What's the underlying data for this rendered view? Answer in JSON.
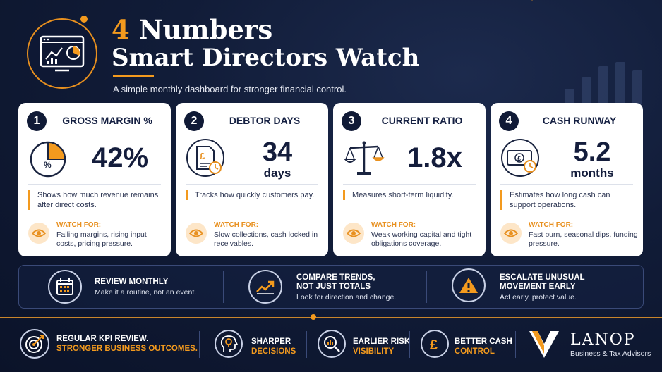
{
  "header": {
    "title_number": "4",
    "title_rest": "Numbers",
    "title_line2": "Smart Directors Watch",
    "subtitle": "A simple monthly dashboard for stronger financial control."
  },
  "cards": [
    {
      "number": "1",
      "title": "GROSS MARGIN %",
      "value": "42%",
      "icon": "pie-chart-icon",
      "description": "Shows how much revenue remains after direct costs.",
      "watch_label": "WATCH FOR:",
      "watch_text": "Falling margins, rising input costs, pricing pressure."
    },
    {
      "number": "2",
      "title": "DEBTOR DAYS",
      "value": "34",
      "unit": "days",
      "icon": "invoice-clock-icon",
      "description": "Tracks how quickly customers pay.",
      "watch_label": "WATCH FOR:",
      "watch_text": "Slow collections, cash locked in receivables."
    },
    {
      "number": "3",
      "title": "CURRENT RATIO",
      "value": "1.8x",
      "icon": "scales-icon",
      "description": "Measures short-term liquidity.",
      "watch_label": "WATCH FOR:",
      "watch_text": "Weak working capital and tight obligations coverage."
    },
    {
      "number": "4",
      "title": "CASH RUNWAY",
      "value": "5.2",
      "unit": "months",
      "icon": "cash-clock-icon",
      "description": "Estimates how long cash can support operations.",
      "watch_label": "WATCH FOR:",
      "watch_text": "Fast burn, seasonal dips, funding pressure."
    }
  ],
  "tips": [
    {
      "title": "REVIEW MONTHLY",
      "subtitle": "Make it a routine, not an event.",
      "icon": "calendar-icon"
    },
    {
      "title_line1": "COMPARE TRENDS,",
      "title_line2": "NOT JUST TOTALS",
      "subtitle": "Look for direction and change.",
      "icon": "trend-arrow-icon"
    },
    {
      "title_line1": "ESCALATE UNUSUAL",
      "title_line2": "MOVEMENT EARLY",
      "subtitle": "Act early, protect value.",
      "icon": "warning-icon"
    }
  ],
  "footer": {
    "kpi_line1": "REGULAR KPI REVIEW.",
    "kpi_line2": "STRONGER BUSINESS OUTCOMES.",
    "benefits": [
      {
        "line1": "SHARPER",
        "line2": "DECISIONS",
        "icon": "head-bulb-icon"
      },
      {
        "line1": "EARLIER RISK",
        "line2": "VISIBILITY",
        "icon": "magnifier-chart-icon"
      },
      {
        "line1": "BETTER CASH",
        "line2": "CONTROL",
        "icon": "pound-coin-icon"
      }
    ],
    "brand": "LANOP",
    "brand_sub": "Business & Tax Advisors"
  },
  "colors": {
    "accent": "#f39a1e",
    "navy": "#111c38",
    "card": "#ffffff"
  }
}
